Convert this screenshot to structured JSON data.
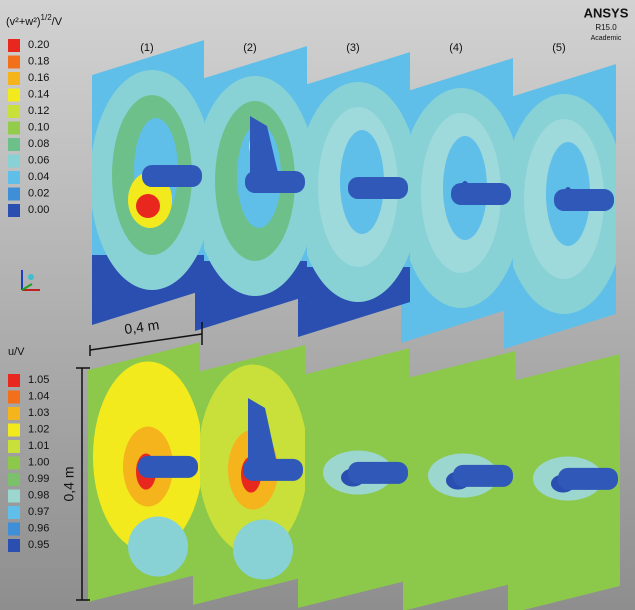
{
  "logo": {
    "name": "ANSYS",
    "version": "R15.0",
    "edition": "Academic"
  },
  "top_legend": {
    "title": [
      "(v²+w²)",
      "1/2",
      "/V"
    ],
    "labels": [
      "0.20",
      "0.18",
      "0.16",
      "0.14",
      "0.12",
      "0.10",
      "0.08",
      "0.06",
      "0.04",
      "0.02",
      "0.00"
    ],
    "colors": [
      "#e8281e",
      "#f2701a",
      "#f5b31c",
      "#f3ea1e",
      "#c9e03a",
      "#93cc4a",
      "#6ec08a",
      "#88d2d6",
      "#5fbfe8",
      "#3f8fd8",
      "#2a4fb0"
    ]
  },
  "bottom_legend": {
    "title": "u/V",
    "labels": [
      "1.05",
      "1.04",
      "1.03",
      "1.02",
      "1.01",
      "1.00",
      "0.99",
      "0.98",
      "0.97",
      "0.96",
      "0.95"
    ],
    "colors": [
      "#e8281e",
      "#f2701a",
      "#f5b31c",
      "#f3ea1e",
      "#c9e03a",
      "#8cc94a",
      "#7bc06a",
      "#9bd6cf",
      "#5fbfe8",
      "#3f8fd8",
      "#2a4fb0"
    ]
  },
  "planes": [
    "(1)",
    "(2)",
    "(3)",
    "(4)",
    "(5)"
  ],
  "dimensions": {
    "width": "0,4 m",
    "height": "0,4 m"
  }
}
